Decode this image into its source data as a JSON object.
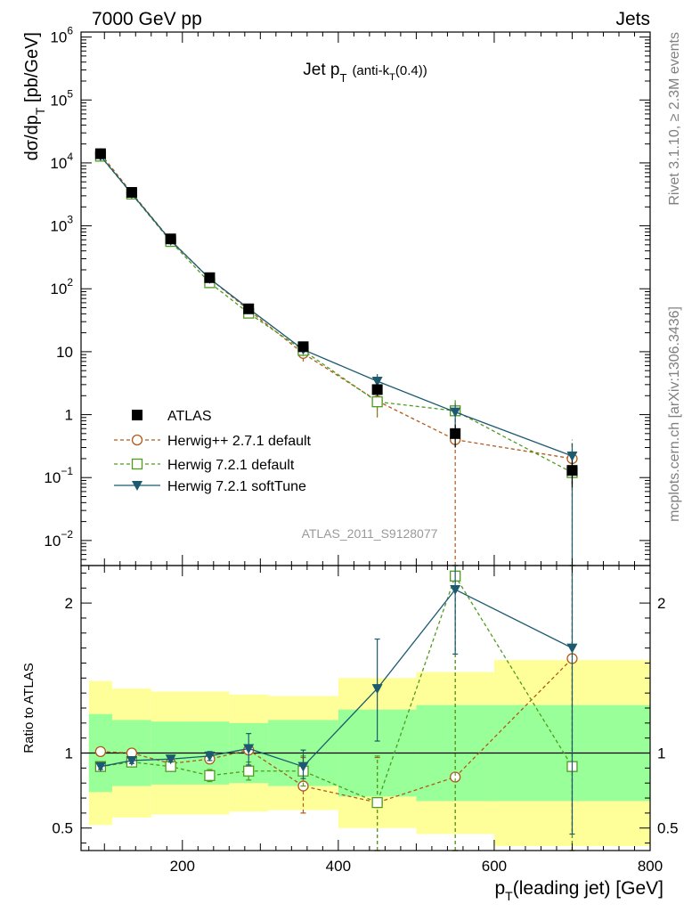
{
  "header": {
    "left": "7000 GeV pp",
    "right": "Jets"
  },
  "side_text": {
    "rivet": "Rivet 3.1.10, ≥ 2.3M events",
    "mcplots": "mcplots.cern.ch [arXiv:1306.3436]"
  },
  "watermark": "ATLAS_2011_S9128077",
  "colors": {
    "atlas": "#000000",
    "herwigpp": "#b15a1a",
    "herwig721": "#4f9b1f",
    "softtune": "#1d5a70",
    "band_inner": "#99ff99",
    "band_outer": "#ffff99"
  },
  "chart_data": [
    {
      "type": "scatter",
      "title_main": "Jet p",
      "title_sub": "T",
      "title_extra_a": "(anti-k",
      "title_extra_sub": "T",
      "title_extra_b": "(0.4))",
      "ylabel_a": "dσ/dp",
      "ylabel_sub": "T",
      "ylabel_b": " [pb/GeV]",
      "yscale": "log",
      "xlim": [
        70,
        800
      ],
      "ylim": [
        0.004,
        1200000
      ],
      "yticks": [
        {
          "v": 1000000,
          "base": "10",
          "exp": "6"
        },
        {
          "v": 100000,
          "base": "10",
          "exp": "5"
        },
        {
          "v": 10000,
          "base": "10",
          "exp": "4"
        },
        {
          "v": 1000,
          "base": "10",
          "exp": "3"
        },
        {
          "v": 100,
          "base": "10",
          "exp": "2"
        },
        {
          "v": 10,
          "base": "10",
          "exp": ""
        },
        {
          "v": 1,
          "base": "1",
          "exp": ""
        },
        {
          "v": 0.1,
          "base": "10",
          "exp": "−1"
        },
        {
          "v": 0.01,
          "base": "10",
          "exp": "−2"
        }
      ],
      "legend_position": "middle-left",
      "x": [
        95,
        135,
        185,
        235,
        285,
        355,
        450,
        550,
        700
      ],
      "series": [
        {
          "name": "ATLAS",
          "marker": "square",
          "values": [
            14000,
            3400,
            620,
            150,
            48,
            12,
            2.5,
            0.5,
            0.13
          ],
          "err_lo": [
            13000,
            3200,
            590,
            142,
            46,
            11,
            2.0,
            0.3,
            0.07
          ],
          "err_hi": [
            15000,
            3600,
            650,
            158,
            50,
            13,
            3.0,
            0.7,
            0.19
          ]
        },
        {
          "name": "Herwig++ 2.7.1 default",
          "marker": "circle",
          "values": [
            14000,
            3350,
            590,
            145,
            46,
            9.4,
            1.65,
            0.4,
            0.2
          ],
          "err_lo": [
            13500,
            3250,
            570,
            140,
            44,
            7.0,
            0.9,
            0.004,
            0.05
          ],
          "err_hi": [
            14500,
            3450,
            610,
            150,
            48,
            11.5,
            2.5,
            1.0,
            0.4
          ]
        },
        {
          "name": "Herwig 7.2.1 default",
          "marker": "square-open",
          "values": [
            12800,
            3200,
            565,
            125,
            41,
            10.5,
            1.6,
            1.15,
            0.12
          ],
          "err_lo": [
            12300,
            3100,
            545,
            117,
            38,
            8.5,
            1.0,
            0.6,
            0.004
          ],
          "err_hi": [
            13300,
            3300,
            585,
            133,
            44,
            12.5,
            2.3,
            1.7,
            0.35
          ]
        },
        {
          "name": "Herwig 7.2.1 softTune",
          "marker": "triangle-down",
          "values": [
            12900,
            3250,
            585,
            145,
            48.5,
            10.8,
            3.4,
            1.1,
            0.22
          ],
          "err_lo": [
            12400,
            3150,
            565,
            140,
            46,
            9.6,
            2.4,
            0.7,
            0.004
          ],
          "err_hi": [
            13400,
            3350,
            605,
            150,
            51,
            12,
            4.4,
            1.5,
            0.35
          ]
        }
      ]
    },
    {
      "type": "scatter",
      "ylabel": "Ratio to ATLAS",
      "xlabel_a": "p",
      "xlabel_sub": "T",
      "xlabel_b": "(leading jet) [GeV]",
      "xlim": [
        70,
        800
      ],
      "ylim": [
        0.35,
        2.25
      ],
      "xticks": [
        200,
        400,
        600,
        800
      ],
      "yticks": [
        0.5,
        1,
        2
      ],
      "bins": [
        [
          80,
          110
        ],
        [
          110,
          160
        ],
        [
          160,
          210
        ],
        [
          210,
          260
        ],
        [
          260,
          310
        ],
        [
          310,
          400
        ],
        [
          400,
          500
        ],
        [
          500,
          600
        ],
        [
          600,
          800
        ]
      ],
      "band_inner": [
        [
          0.74,
          1.26
        ],
        [
          0.78,
          1.22
        ],
        [
          0.79,
          1.21
        ],
        [
          0.79,
          1.21
        ],
        [
          0.8,
          1.2
        ],
        [
          0.78,
          1.22
        ],
        [
          0.71,
          1.29
        ],
        [
          0.68,
          1.32
        ],
        [
          0.68,
          1.32
        ]
      ],
      "band_outer": [
        [
          0.52,
          1.48
        ],
        [
          0.57,
          1.43
        ],
        [
          0.59,
          1.41
        ],
        [
          0.59,
          1.41
        ],
        [
          0.61,
          1.39
        ],
        [
          0.62,
          1.38
        ],
        [
          0.5,
          1.5
        ],
        [
          0.46,
          1.54
        ],
        [
          0.38,
          1.62
        ]
      ],
      "x": [
        95,
        135,
        185,
        235,
        285,
        355,
        450,
        550,
        700
      ],
      "series": [
        {
          "name": "Herwig++ 2.7.1 default",
          "marker": "circle",
          "values": [
            1.01,
            1.0,
            0.93,
            0.96,
            1.02,
            0.78,
            0.67,
            0.84,
            1.63
          ],
          "err_lo": [
            0.99,
            0.98,
            0.91,
            0.93,
            0.99,
            0.6,
            0.35,
            0.35,
            0.35
          ],
          "err_hi": [
            1.03,
            1.02,
            0.95,
            0.99,
            1.05,
            0.97,
            0.97,
            2.25,
            2.25
          ]
        },
        {
          "name": "Herwig 7.2.1 default",
          "marker": "square-open",
          "values": [
            0.91,
            0.94,
            0.91,
            0.85,
            0.88,
            0.88,
            0.67,
            2.18,
            0.91
          ],
          "err_lo": [
            0.89,
            0.92,
            0.88,
            0.81,
            0.82,
            0.78,
            0.35,
            0.35,
            0.35
          ],
          "err_hi": [
            0.93,
            0.96,
            0.94,
            0.89,
            0.94,
            0.98,
            0.98,
            2.25,
            2.25
          ]
        },
        {
          "name": "Herwig 7.2.1 softTune",
          "marker": "triangle-down",
          "values": [
            0.91,
            0.95,
            0.96,
            0.98,
            1.03,
            0.91,
            1.43,
            2.09,
            1.7
          ],
          "err_lo": [
            0.89,
            0.93,
            0.94,
            0.95,
            0.92,
            0.83,
            1.08,
            1.66,
            0.46
          ],
          "err_hi": [
            0.93,
            0.97,
            0.98,
            1.01,
            1.13,
            1.02,
            1.76,
            2.25,
            2.25
          ]
        }
      ]
    }
  ]
}
